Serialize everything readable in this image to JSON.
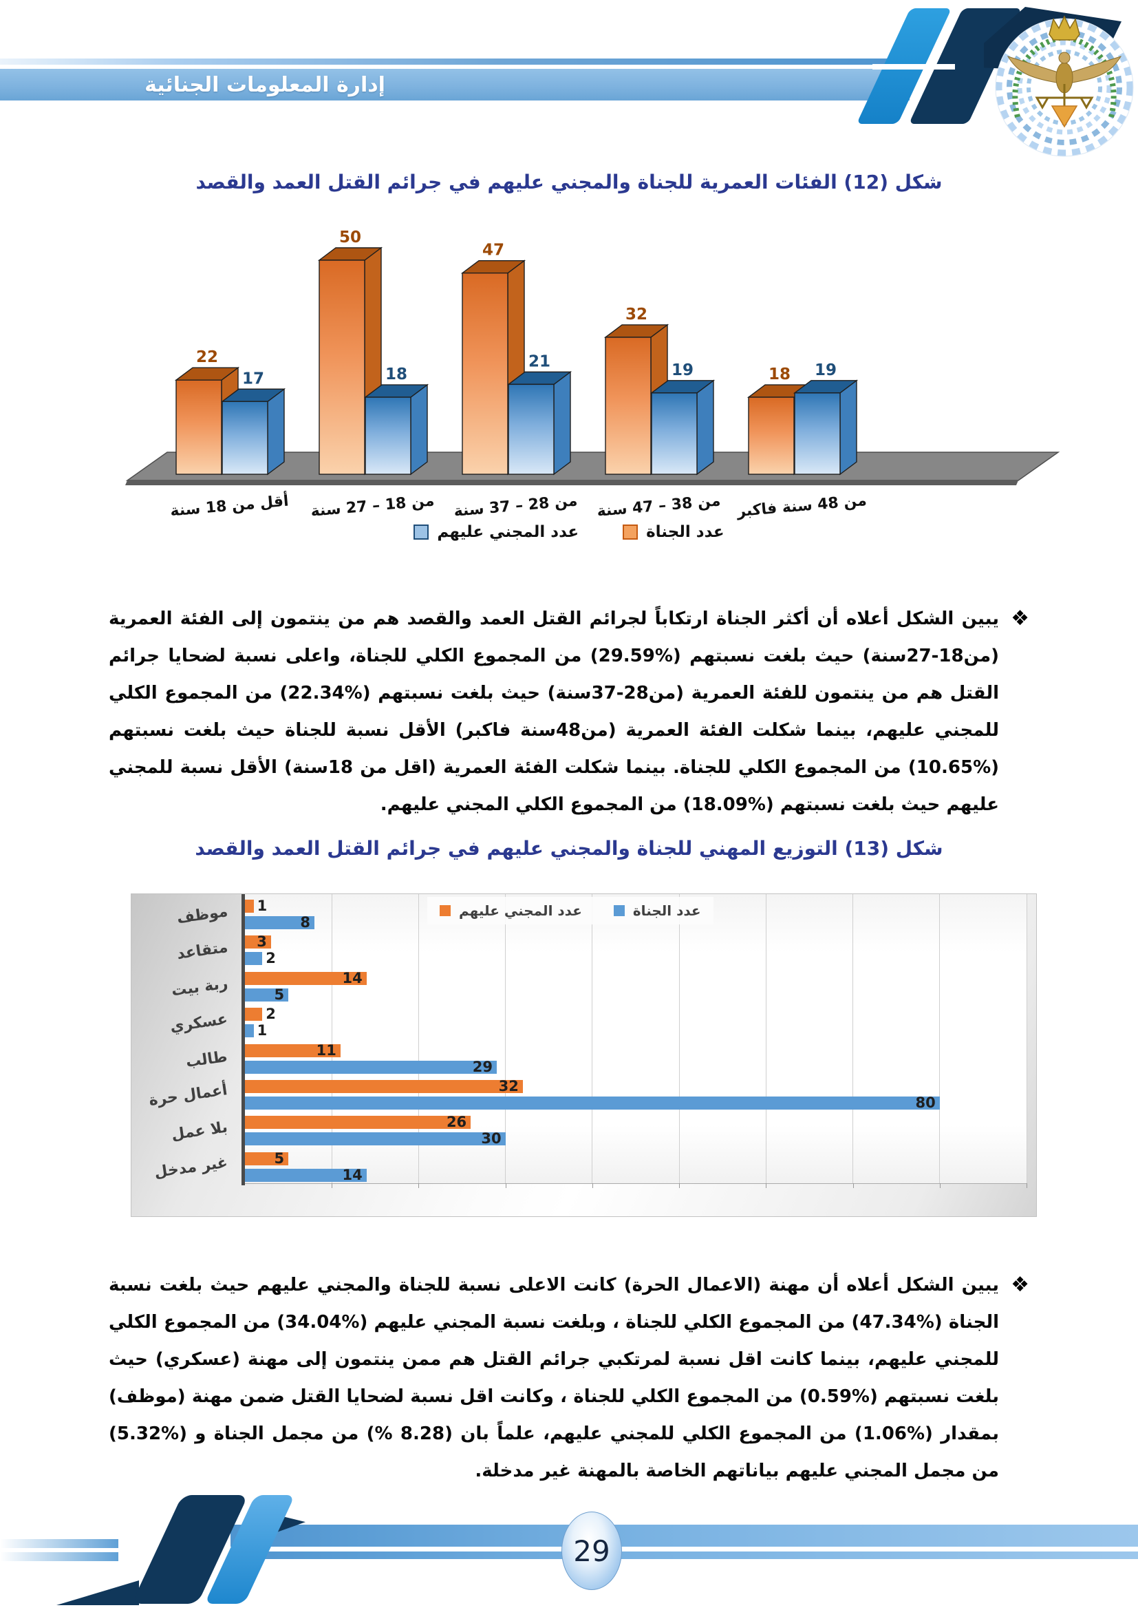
{
  "header": {
    "title": "إدارة المعلومات الجنائية"
  },
  "paragraphs": {
    "bullet": "❖",
    "p1": "يبين الشكل أعلاه أن أكثر الجناة ارتكاباً لجرائم القتل العمد والقصد هم من ينتمون إلى الفئة العمرية (من18-27سنة) حيث بلغت نسبتهم (%29.59) من المجموع الكلي للجناة، واعلى نسبة لضحايا جرائم القتل هم من ينتمون للفئة العمرية (من28-37سنة) حيث بلغت نسبتهم (%22.34) من المجموع الكلي للمجني عليهم، بينما شكلت الفئة العمرية (من48سنة فاكبر) الأقل نسبة للجناة حيث بلغت نسبتهم (%10.65) من المجموع الكلي للجناة. بينما شكلت الفئة العمرية (اقل من 18سنة) الأقل نسبة للمجني عليهم حيث بلغت نسبتهم (%18.09) من المجموع الكلي المجني عليهم.",
    "p2": "يبين الشكل أعلاه أن مهنة (الاعمال الحرة) كانت الاعلى نسبة للجناة والمجني عليهم حيث بلغت نسبة الجناة (%47.34) من المجموع الكلي للجناة ، وبلغت نسبة المجني عليهم (%34.04) من المجموع الكلي للمجني عليهم، بينما كانت اقل نسبة لمرتكبي جرائم القتل هم ممن ينتمون إلى مهنة (عسكري) حيث بلغت نسبتهم (%0.59) من المجموع الكلي للجناة ، وكانت اقل نسبة لضحايا القتل ضمن مهنة (موظف) بمقدار (%1.06) من المجموع الكلي للمجني عليهم، علماً بان (8.28 %) من مجمل الجناة و (%5.32) من مجمل المجني عليهم بياناتهم الخاصة بالمهنة غير مدخلة."
  },
  "footer": {
    "page_number": "29"
  },
  "colors": {
    "figure_title": "#2B3990",
    "band_blue": "#4E94CF",
    "navy": "#10375A",
    "perpetrators": "#ED7D31",
    "victims": "#5B9BD5"
  },
  "chart_data": [
    {
      "type": "bar",
      "style": "3d-column",
      "title": "شكل (12) الفئات العمرية للجناة والمجني عليهم في جرائم القتل العمد والقصد",
      "categories": [
        "أقل من 18 سنة",
        "من 18 – 27 سنة",
        "من 28 – 37 سنة",
        "من 38 – 47 سنة",
        "من 48 سنة فاكبر"
      ],
      "series": [
        {
          "name": "عدد الجناة",
          "color": "#ED7D31",
          "values": [
            22,
            50,
            47,
            32,
            18
          ]
        },
        {
          "name": "عدد المجني عليهم",
          "color": "#5B9BD5",
          "values": [
            17,
            18,
            21,
            19,
            19
          ]
        }
      ],
      "ylim": [
        0,
        50
      ],
      "grid": false,
      "legend_position": "bottom",
      "value_labels": true
    },
    {
      "type": "bar",
      "orientation": "horizontal",
      "title": "شكل (13) التوزيع المهني للجناة والمجني عليهم في جرائم القتل العمد والقصد",
      "categories": [
        "موظف",
        "متقاعد",
        "ربة بيت",
        "عسكري",
        "طالب",
        "أعمال حرة",
        "بلا عمل",
        "غير مدخل"
      ],
      "series": [
        {
          "name": "عدد المجني عليهم",
          "color": "#ED7D31",
          "values": [
            1,
            3,
            14,
            2,
            11,
            32,
            26,
            5
          ]
        },
        {
          "name": "عدد الجناة",
          "color": "#5B9BD5",
          "values": [
            8,
            2,
            5,
            1,
            29,
            80,
            30,
            14
          ]
        }
      ],
      "xlim": [
        0,
        90
      ],
      "gridline_step": 10,
      "grid": true,
      "legend_position": "top-inside",
      "value_labels": true
    }
  ]
}
